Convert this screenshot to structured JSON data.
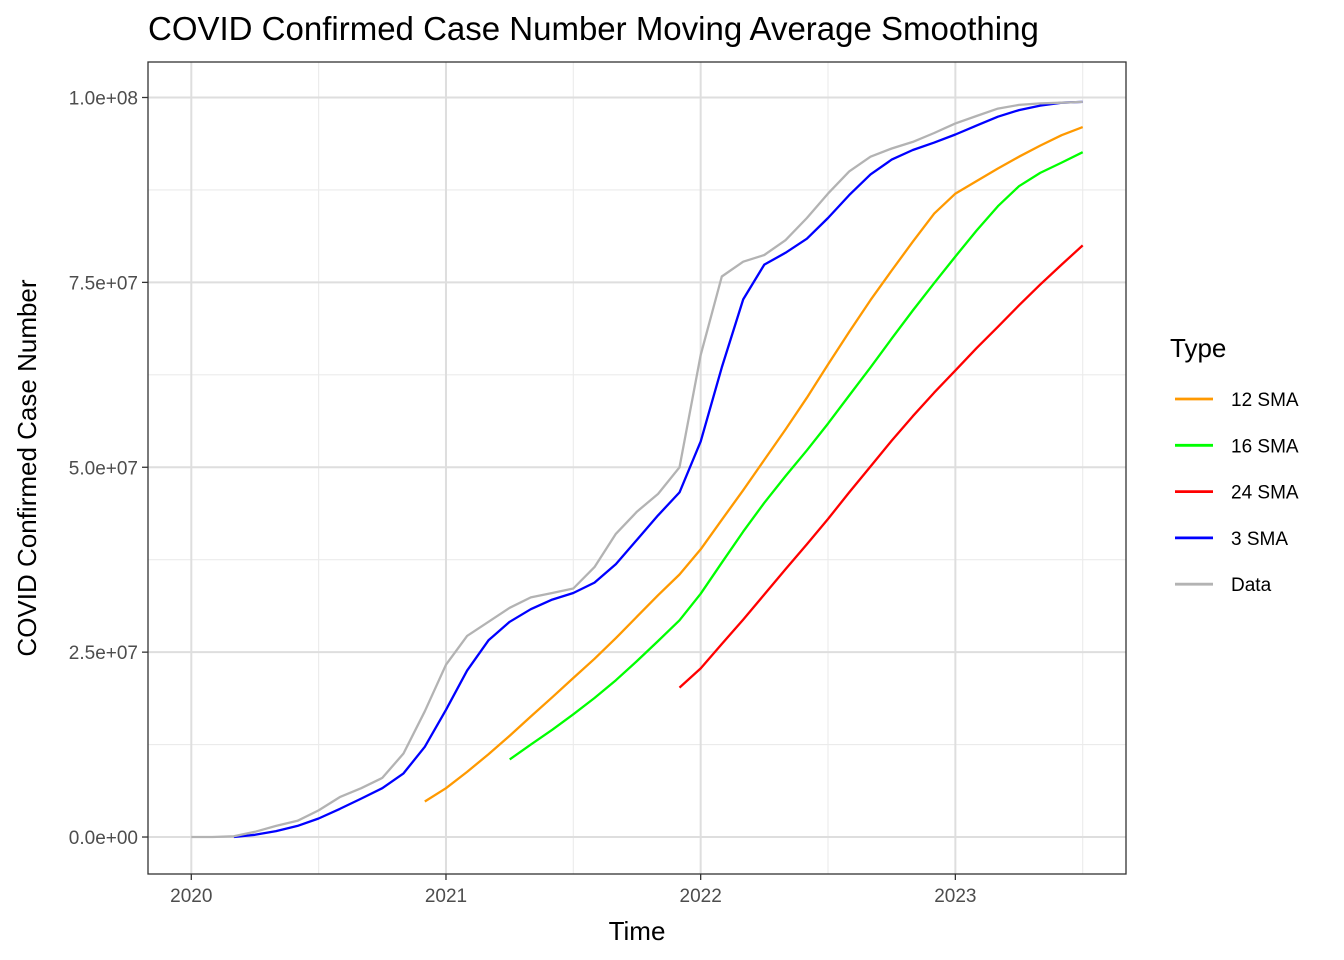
{
  "chart_data": {
    "type": "line",
    "title": "COVID Confirmed Case Number Moving Average Smoothing",
    "xlabel": "Time",
    "ylabel": "COVID Confirmed Case Number",
    "xlim": [
      2019.83,
      2023.67
    ],
    "ylim": [
      -5000000,
      104800000
    ],
    "x_ticks": [
      2020,
      2021,
      2022,
      2023
    ],
    "x_tick_labels": [
      "2020",
      "2021",
      "2022",
      "2023"
    ],
    "y_ticks": [
      0,
      25000000,
      50000000,
      75000000,
      100000000
    ],
    "y_tick_labels": [
      "0.0e+00",
      "2.5e+07",
      "5.0e+07",
      "7.5e+07",
      "1.0e+08"
    ],
    "y_minor_ticks": [
      12500000,
      37500000,
      62500000,
      87500000
    ],
    "x_minor_ticks": [
      2020.5,
      2021.5,
      2022.5,
      2023.5
    ],
    "grid": true,
    "legend": {
      "title": "Type",
      "position": "right"
    },
    "series": [
      {
        "name": "12 SMA",
        "color": "#FF9900",
        "x": [
          2020.917,
          2021.0,
          2021.083,
          2021.167,
          2021.25,
          2021.333,
          2021.417,
          2021.5,
          2021.583,
          2021.667,
          2021.75,
          2021.833,
          2021.917,
          2022.0,
          2022.083,
          2022.167,
          2022.25,
          2022.333,
          2022.417,
          2022.5,
          2022.583,
          2022.667,
          2022.75,
          2022.833,
          2022.917,
          2023.0,
          2023.083,
          2023.167,
          2023.25,
          2023.333,
          2023.417,
          2023.5
        ],
        "values": [
          4800000,
          6600000,
          8800000,
          11200000,
          13700000,
          16300000,
          18900000,
          21500000,
          24100000,
          26900000,
          29800000,
          32700000,
          35500000,
          38900000,
          42900000,
          46900000,
          51000000,
          55100000,
          59400000,
          63900000,
          68300000,
          72600000,
          76600000,
          80500000,
          84300000,
          87000000,
          88700000,
          90400000,
          92000000,
          93500000,
          94900000,
          96000000
        ]
      },
      {
        "name": "16 SMA",
        "color": "#00FF00",
        "x": [
          2021.25,
          2021.333,
          2021.417,
          2021.5,
          2021.583,
          2021.667,
          2021.75,
          2021.833,
          2021.917,
          2022.0,
          2022.083,
          2022.167,
          2022.25,
          2022.333,
          2022.417,
          2022.5,
          2022.583,
          2022.667,
          2022.75,
          2022.833,
          2022.917,
          2023.0,
          2023.083,
          2023.167,
          2023.25,
          2023.333,
          2023.417,
          2023.5
        ],
        "values": [
          10500000,
          12500000,
          14500000,
          16600000,
          18800000,
          21200000,
          23800000,
          26500000,
          29300000,
          32900000,
          37100000,
          41300000,
          45200000,
          48800000,
          52300000,
          55900000,
          59700000,
          63500000,
          67400000,
          71200000,
          74900000,
          78500000,
          82000000,
          85300000,
          88000000,
          89800000,
          91200000,
          92600000
        ]
      },
      {
        "name": "24 SMA",
        "color": "#FF0000",
        "x": [
          2021.917,
          2022.0,
          2022.083,
          2022.167,
          2022.25,
          2022.333,
          2022.417,
          2022.5,
          2022.583,
          2022.667,
          2022.75,
          2022.833,
          2022.917,
          2023.0,
          2023.083,
          2023.167,
          2023.25,
          2023.333,
          2023.417,
          2023.5
        ],
        "values": [
          20200000,
          22800000,
          26100000,
          29400000,
          32800000,
          36200000,
          39600000,
          43000000,
          46600000,
          50100000,
          53600000,
          56900000,
          60100000,
          63100000,
          66100000,
          69000000,
          71900000,
          74700000,
          77400000,
          80000000
        ]
      },
      {
        "name": "3 SMA",
        "color": "#0000FF",
        "x": [
          2020.167,
          2020.25,
          2020.333,
          2020.417,
          2020.5,
          2020.583,
          2020.667,
          2020.75,
          2020.833,
          2020.917,
          2021.0,
          2021.083,
          2021.167,
          2021.25,
          2021.333,
          2021.417,
          2021.5,
          2021.583,
          2021.667,
          2021.75,
          2021.833,
          2021.917,
          2022.0,
          2022.083,
          2022.167,
          2022.25,
          2022.333,
          2022.417,
          2022.5,
          2022.583,
          2022.667,
          2022.75,
          2022.833,
          2022.917,
          2023.0,
          2023.083,
          2023.167,
          2023.25,
          2023.333,
          2023.417,
          2023.5
        ],
        "values": [
          0,
          300000,
          800000,
          1500000,
          2500000,
          3800000,
          5200000,
          6600000,
          8600000,
          12200000,
          17200000,
          22500000,
          26600000,
          29100000,
          30800000,
          32100000,
          33000000,
          34400000,
          36900000,
          40200000,
          43500000,
          46600000,
          53500000,
          63500000,
          72700000,
          77400000,
          79000000,
          80900000,
          83700000,
          86800000,
          89600000,
          91600000,
          92900000,
          93900000,
          95000000,
          96200000,
          97400000,
          98300000,
          98900000,
          99300000,
          99400000
        ]
      },
      {
        "name": "Data",
        "color": "#B3B3B3",
        "x": [
          2020.0,
          2020.083,
          2020.167,
          2020.25,
          2020.333,
          2020.417,
          2020.5,
          2020.583,
          2020.667,
          2020.75,
          2020.833,
          2020.917,
          2021.0,
          2021.083,
          2021.167,
          2021.25,
          2021.333,
          2021.417,
          2021.5,
          2021.583,
          2021.667,
          2021.75,
          2021.833,
          2021.917,
          2022.0,
          2022.083,
          2022.167,
          2022.25,
          2022.333,
          2022.417,
          2022.5,
          2022.583,
          2022.667,
          2022.75,
          2022.833,
          2022.917,
          2023.0,
          2023.083,
          2023.167,
          2023.25,
          2023.333,
          2023.417,
          2023.5
        ],
        "values": [
          0,
          0,
          100000,
          700000,
          1500000,
          2200000,
          3600000,
          5400000,
          6600000,
          8000000,
          11300000,
          17000000,
          23300000,
          27200000,
          29100000,
          31000000,
          32400000,
          33000000,
          33600000,
          36500000,
          41000000,
          44000000,
          46400000,
          50000000,
          65200000,
          75800000,
          77800000,
          78700000,
          80700000,
          83700000,
          87000000,
          90000000,
          92000000,
          93100000,
          94000000,
          95200000,
          96500000,
          97500000,
          98500000,
          99000000,
          99200000,
          99300000,
          99400000
        ]
      }
    ],
    "legend_order": [
      "12 SMA",
      "16 SMA",
      "24 SMA",
      "3 SMA",
      "Data"
    ]
  }
}
